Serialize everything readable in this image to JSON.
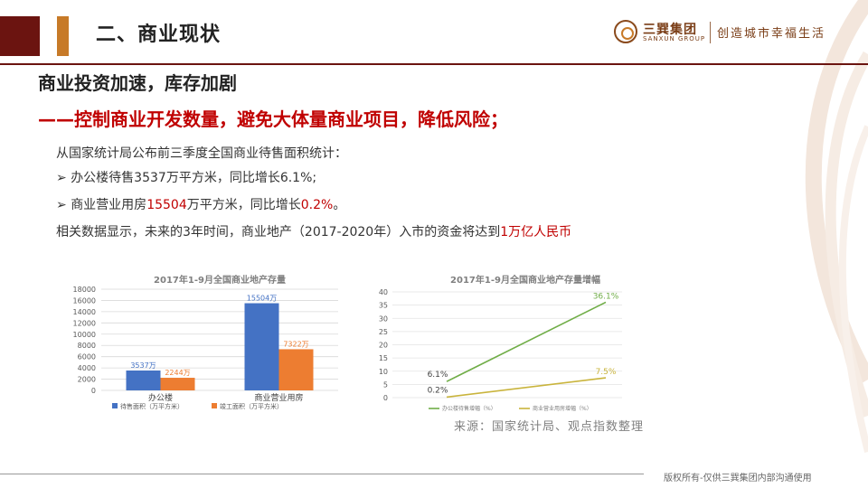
{
  "header": {
    "title": "二、商业现状",
    "logo": {
      "name_cn": "三巽集团",
      "name_en": "SANXUN GROUP",
      "slogan": "创造城市幸福生活"
    }
  },
  "subtitle": "商业投资加速，库存加剧",
  "subheading": "——控制商业开发数量，避免大体量商业项目，降低风险；",
  "body": {
    "intro": "从国家统计局公布前三季度全国商业待售面积统计：",
    "bullet1": "办公楼待售3537万平方米，同比增长6.1%;",
    "bullet2": {
      "prefix": "商业营业用房",
      "value": "15504",
      "mid": "万平方米，同比增长",
      "pct": "0.2%",
      "suffix": "。"
    },
    "closing": {
      "prefix": "相关数据显示，未来的3年时间，商业地产（2017-2020年）入市的资金将达到",
      "highlight": "1万亿人民币"
    }
  },
  "colors": {
    "accent_red": "#c00000",
    "dark_red": "#6b1410",
    "bar_blue": "#4472c4",
    "bar_orange": "#ed7d31",
    "line_green": "#70ad47",
    "line_olive": "#c9b43c"
  },
  "chart_data": [
    {
      "type": "bar",
      "title": "2017年1-9月全国商业地产存量",
      "categories": [
        "办公楼",
        "商业营业用房"
      ],
      "series": [
        {
          "name": "待售面积（万平方米）",
          "values": [
            3537,
            15504
          ],
          "labels": [
            "3537万",
            "15504万"
          ]
        },
        {
          "name": "竣工面积（万平方米）",
          "values": [
            2244,
            7322
          ],
          "labels": [
            "2244万",
            "7322万"
          ]
        }
      ],
      "yticks": [
        "0",
        "2000",
        "4000",
        "6000",
        "8000",
        "10000",
        "12000",
        "14000",
        "16000",
        "18000"
      ],
      "ylim": [
        0,
        18000
      ],
      "grid": true,
      "legend": "bottom"
    },
    {
      "type": "line",
      "title": "2017年1-9月全国商业地产存量增幅",
      "series": [
        {
          "name": "办公楼待售增幅（%）",
          "values": [
            6.1,
            36.1
          ],
          "labels": [
            "6.1%",
            "36.1%"
          ]
        },
        {
          "name": "商业营业用房增幅（%）",
          "values": [
            0.2,
            7.5
          ],
          "labels": [
            "0.2%",
            "7.5%"
          ]
        }
      ],
      "yticks": [
        "0",
        "5",
        "10",
        "15",
        "20",
        "25",
        "30",
        "35",
        "40"
      ],
      "ylim": [
        0,
        40
      ],
      "grid": true,
      "legend": "bottom"
    }
  ],
  "source": "来源：国家统计局、观点指数整理",
  "footer": "版权所有-仅供三巽集团内部沟通使用"
}
